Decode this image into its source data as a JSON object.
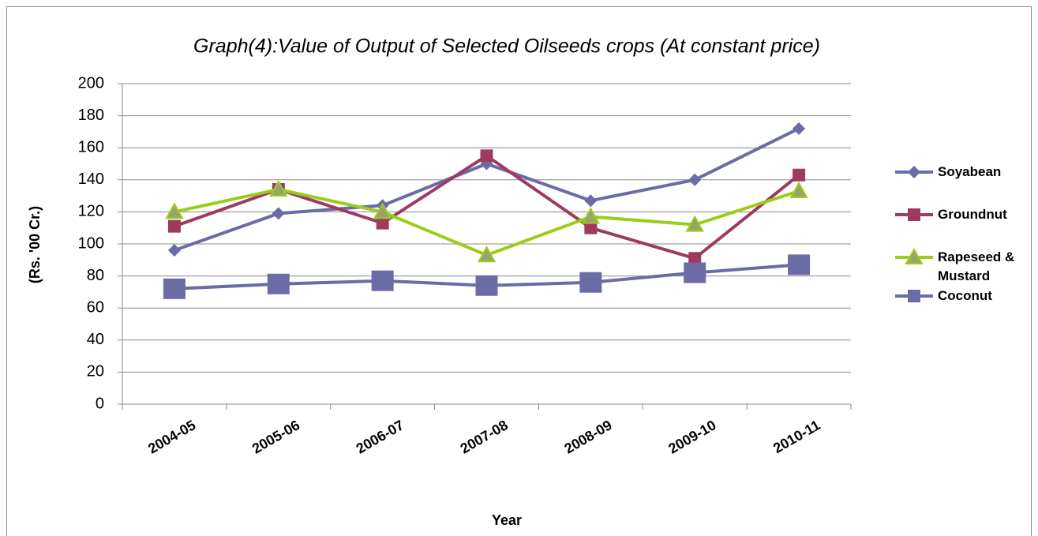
{
  "chart_data": {
    "type": "line",
    "title": "Graph(4):Value of Output of  Selected Oilseeds crops (At constant price)",
    "x_label": "Year",
    "y_label": "(Rs. '00 Cr.)",
    "categories": [
      "2004-05",
      "2005-06",
      "2006-07",
      "2007-08",
      "2008-09",
      "2009-10",
      "2010-11"
    ],
    "series": [
      {
        "name": "Soyabean",
        "color": "#6b6ba6",
        "marker": "diamond",
        "values": [
          96,
          119,
          124,
          150,
          127,
          140,
          172
        ]
      },
      {
        "name": "Groundnut",
        "color": "#9e3a62",
        "marker": "square",
        "values": [
          111,
          134,
          113,
          155,
          110,
          91,
          143
        ]
      },
      {
        "name": "Rapeseed & Mustard",
        "color": "#9acd1a",
        "marker": "triangle",
        "values": [
          120,
          134,
          120,
          93,
          117,
          112,
          133
        ]
      },
      {
        "name": "Coconut",
        "color": "#6b6ba6",
        "marker": "big-square",
        "values": [
          72,
          75,
          77,
          74,
          76,
          82,
          87
        ]
      }
    ],
    "ylim": [
      0,
      200
    ],
    "yticks": [
      0,
      20,
      40,
      60,
      80,
      100,
      120,
      140,
      160,
      180,
      200
    ],
    "grid": true,
    "legend": "right"
  }
}
